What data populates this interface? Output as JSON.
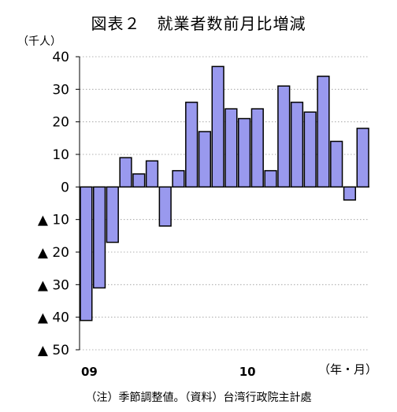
{
  "chart_data": {
    "type": "bar",
    "title": "図表２　就業者数前月比増減",
    "unit_label": "（千人）",
    "x_axis_label": "（年・月）",
    "note": "（注）季節調整値。（資料）台湾行政院主計處",
    "yticks": [
      {
        "value": 40,
        "label": "40"
      },
      {
        "value": 30,
        "label": "30"
      },
      {
        "value": 20,
        "label": "20"
      },
      {
        "value": 10,
        "label": "10"
      },
      {
        "value": 0,
        "label": "0"
      },
      {
        "value": -10,
        "label": "▲ 10"
      },
      {
        "value": -20,
        "label": "▲ 20"
      },
      {
        "value": -30,
        "label": "▲ 30"
      },
      {
        "value": -40,
        "label": "▲ 40"
      },
      {
        "value": -50,
        "label": "▲ 50"
      }
    ],
    "ylim": [
      -50,
      40
    ],
    "grid": true,
    "bar_color": "#9999ee",
    "xtick_labels": [
      {
        "index": 0,
        "label": "09"
      },
      {
        "index": 12,
        "label": "10"
      }
    ],
    "values": [
      -41,
      -31,
      -17,
      9,
      4,
      8,
      -12,
      5,
      26,
      17,
      37,
      24,
      21,
      24,
      5,
      31,
      26,
      23,
      34,
      14,
      -4,
      18
    ]
  }
}
